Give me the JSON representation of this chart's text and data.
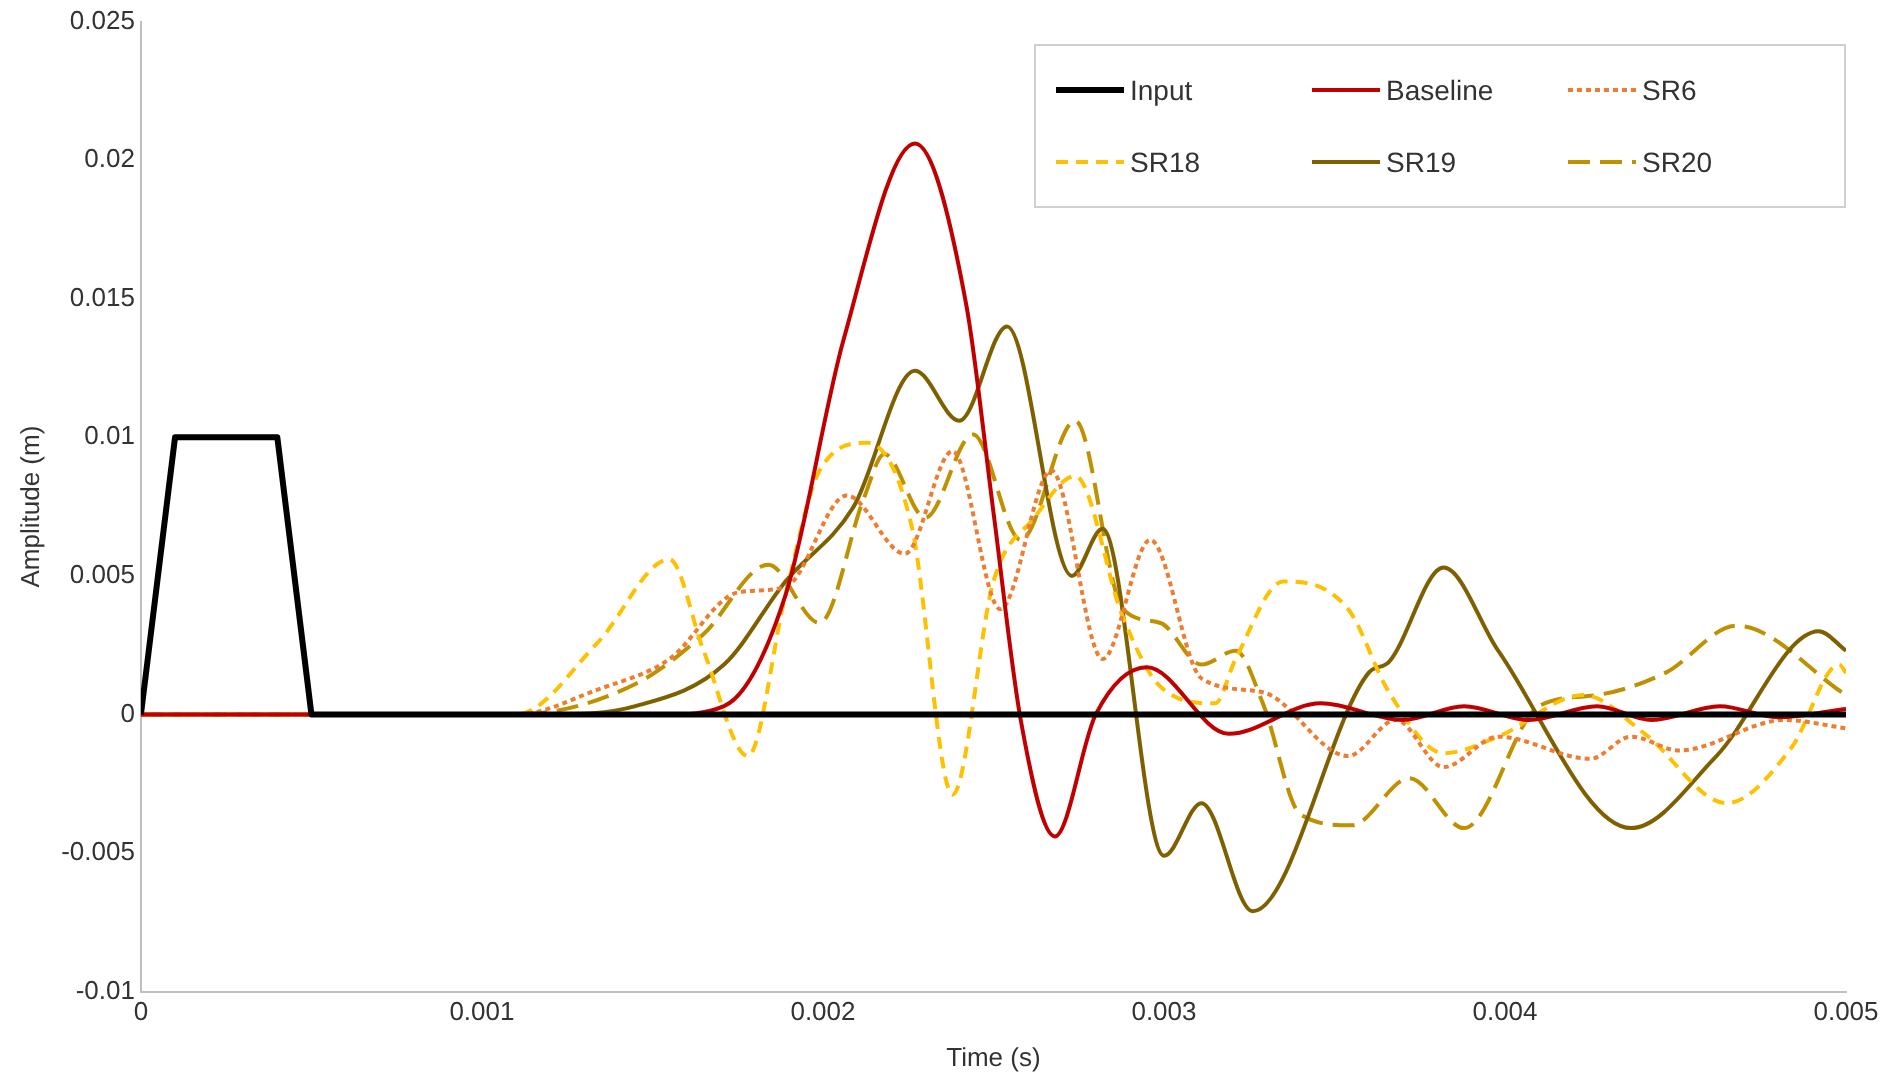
{
  "chart_data": {
    "type": "line",
    "xlabel": "Time (s)",
    "ylabel": "Amplitude (m)",
    "xlim": [
      0,
      0.005
    ],
    "xticks": [
      0,
      0.001,
      0.002,
      0.003,
      0.004,
      0.005
    ],
    "ylim": [
      -0.01,
      0.025
    ],
    "yticks": [
      -0.01,
      -0.005,
      0,
      0.005,
      0.01,
      0.015,
      0.02,
      0.025
    ],
    "grid": false,
    "legend": "top right",
    "marker": "none",
    "series": [
      {
        "name": "Input",
        "color": "#000000",
        "line_style": "solid",
        "x": [
          0,
          0.0001,
          0.0004,
          0.0005,
          0.005
        ],
        "values": [
          0,
          0.01,
          0.01,
          0,
          0
        ]
      },
      {
        "name": "Baseline",
        "color": "#c00000",
        "line_style": "solid",
        "x": [
          0,
          0.0012,
          0.00154,
          0.00171,
          0.00189,
          0.00206,
          0.00227,
          0.00242,
          0.0025,
          0.00258,
          0.00268,
          0.0028,
          0.00295,
          0.00319,
          0.00346,
          0.0037,
          0.00388,
          0.00407,
          0.00427,
          0.00443,
          0.00463,
          0.0048,
          0.005
        ],
        "values": [
          0,
          0,
          0,
          0.0003,
          0.0043,
          0.0135,
          0.0206,
          0.0148,
          0.0073,
          -0.0002,
          -0.0044,
          0,
          0.0017,
          -0.0007,
          0.0004,
          -0.0002,
          0.0003,
          -0.0002,
          0.0003,
          -0.0002,
          0.0003,
          -0.0001,
          0.0002
        ]
      },
      {
        "name": "SR6",
        "color": "#ed7d31",
        "line_style": "dotted",
        "x": [
          0,
          0.0011,
          0.00134,
          0.00155,
          0.00175,
          0.00189,
          0.00207,
          0.00224,
          0.00238,
          0.00252,
          0.00267,
          0.00282,
          0.00296,
          0.00311,
          0.00329,
          0.00354,
          0.00368,
          0.00382,
          0.00398,
          0.00425,
          0.00437,
          0.00451,
          0.00482,
          0.005
        ],
        "values": [
          0,
          0,
          0.0009,
          0.002,
          0.0044,
          0.0046,
          0.0079,
          0.0058,
          0.0095,
          0.0038,
          0.0088,
          0.002,
          0.0063,
          0.0013,
          0.0008,
          -0.0015,
          -0.0002,
          -0.0019,
          -0.0008,
          -0.0016,
          -0.0008,
          -0.0013,
          -0.0002,
          -0.0005
        ]
      },
      {
        "name": "SR18",
        "color": "#ffc000",
        "line_style": "dashed",
        "x": [
          0,
          0.0011,
          0.00134,
          0.00155,
          0.00165,
          0.00178,
          0.00189,
          0.00199,
          0.00213,
          0.00226,
          0.00238,
          0.0025,
          0.00262,
          0.00274,
          0.00288,
          0.00299,
          0.00315,
          0.00321,
          0.00335,
          0.00354,
          0.00366,
          0.00382,
          0.00398,
          0.00423,
          0.00441,
          0.00465,
          0.00484,
          0.00498,
          0.005
        ],
        "values": [
          0,
          0,
          0.0026,
          0.0056,
          0.0023,
          -0.0015,
          0.0043,
          0.0088,
          0.0098,
          0.0068,
          -0.0029,
          0.0048,
          0.0071,
          0.0086,
          0.0035,
          0.001,
          0.0004,
          0.002,
          0.0048,
          0.0038,
          0.0008,
          -0.0014,
          -0.0008,
          0.0007,
          -0.0007,
          -0.0032,
          -0.0012,
          0.0018,
          0.0015
        ]
      },
      {
        "name": "SR19",
        "color": "#7f6000",
        "line_style": "solid",
        "x": [
          0,
          0.0012,
          0.00145,
          0.00171,
          0.00189,
          0.00209,
          0.00227,
          0.0024,
          0.00254,
          0.00273,
          0.00282,
          0.003,
          0.00311,
          0.00326,
          0.0036,
          0.00366,
          0.00382,
          0.00398,
          0.00437,
          0.00462,
          0.00492,
          0.005
        ],
        "values": [
          0,
          0,
          0.0003,
          0.0018,
          0.0048,
          0.0075,
          0.0124,
          0.0106,
          0.014,
          0.005,
          0.0067,
          -0.0051,
          -0.0032,
          -0.0071,
          0.0015,
          0.0019,
          0.0053,
          0.0023,
          -0.0041,
          -0.0015,
          0.003,
          0.0023
        ]
      },
      {
        "name": "SR20",
        "color": "#bf9000",
        "line_style": "longdash",
        "x": [
          0,
          0.0011,
          0.00145,
          0.00165,
          0.00184,
          0.00199,
          0.00212,
          0.00218,
          0.0023,
          0.00244,
          0.00258,
          0.00274,
          0.00288,
          0.00299,
          0.00311,
          0.00321,
          0.00329,
          0.0034,
          0.00355,
          0.00372,
          0.00388,
          0.0041,
          0.00427,
          0.00447,
          0.00468,
          0.005
        ],
        "values": [
          0,
          0,
          0.0011,
          0.0029,
          0.0054,
          0.0033,
          0.0078,
          0.0094,
          0.0071,
          0.0101,
          0.0063,
          0.0106,
          0.0038,
          0.0033,
          0.0018,
          0.0023,
          0.0004,
          -0.0036,
          -0.004,
          -0.0023,
          -0.0041,
          0.0003,
          0.0007,
          0.0015,
          0.0032,
          0.0007
        ]
      }
    ]
  }
}
